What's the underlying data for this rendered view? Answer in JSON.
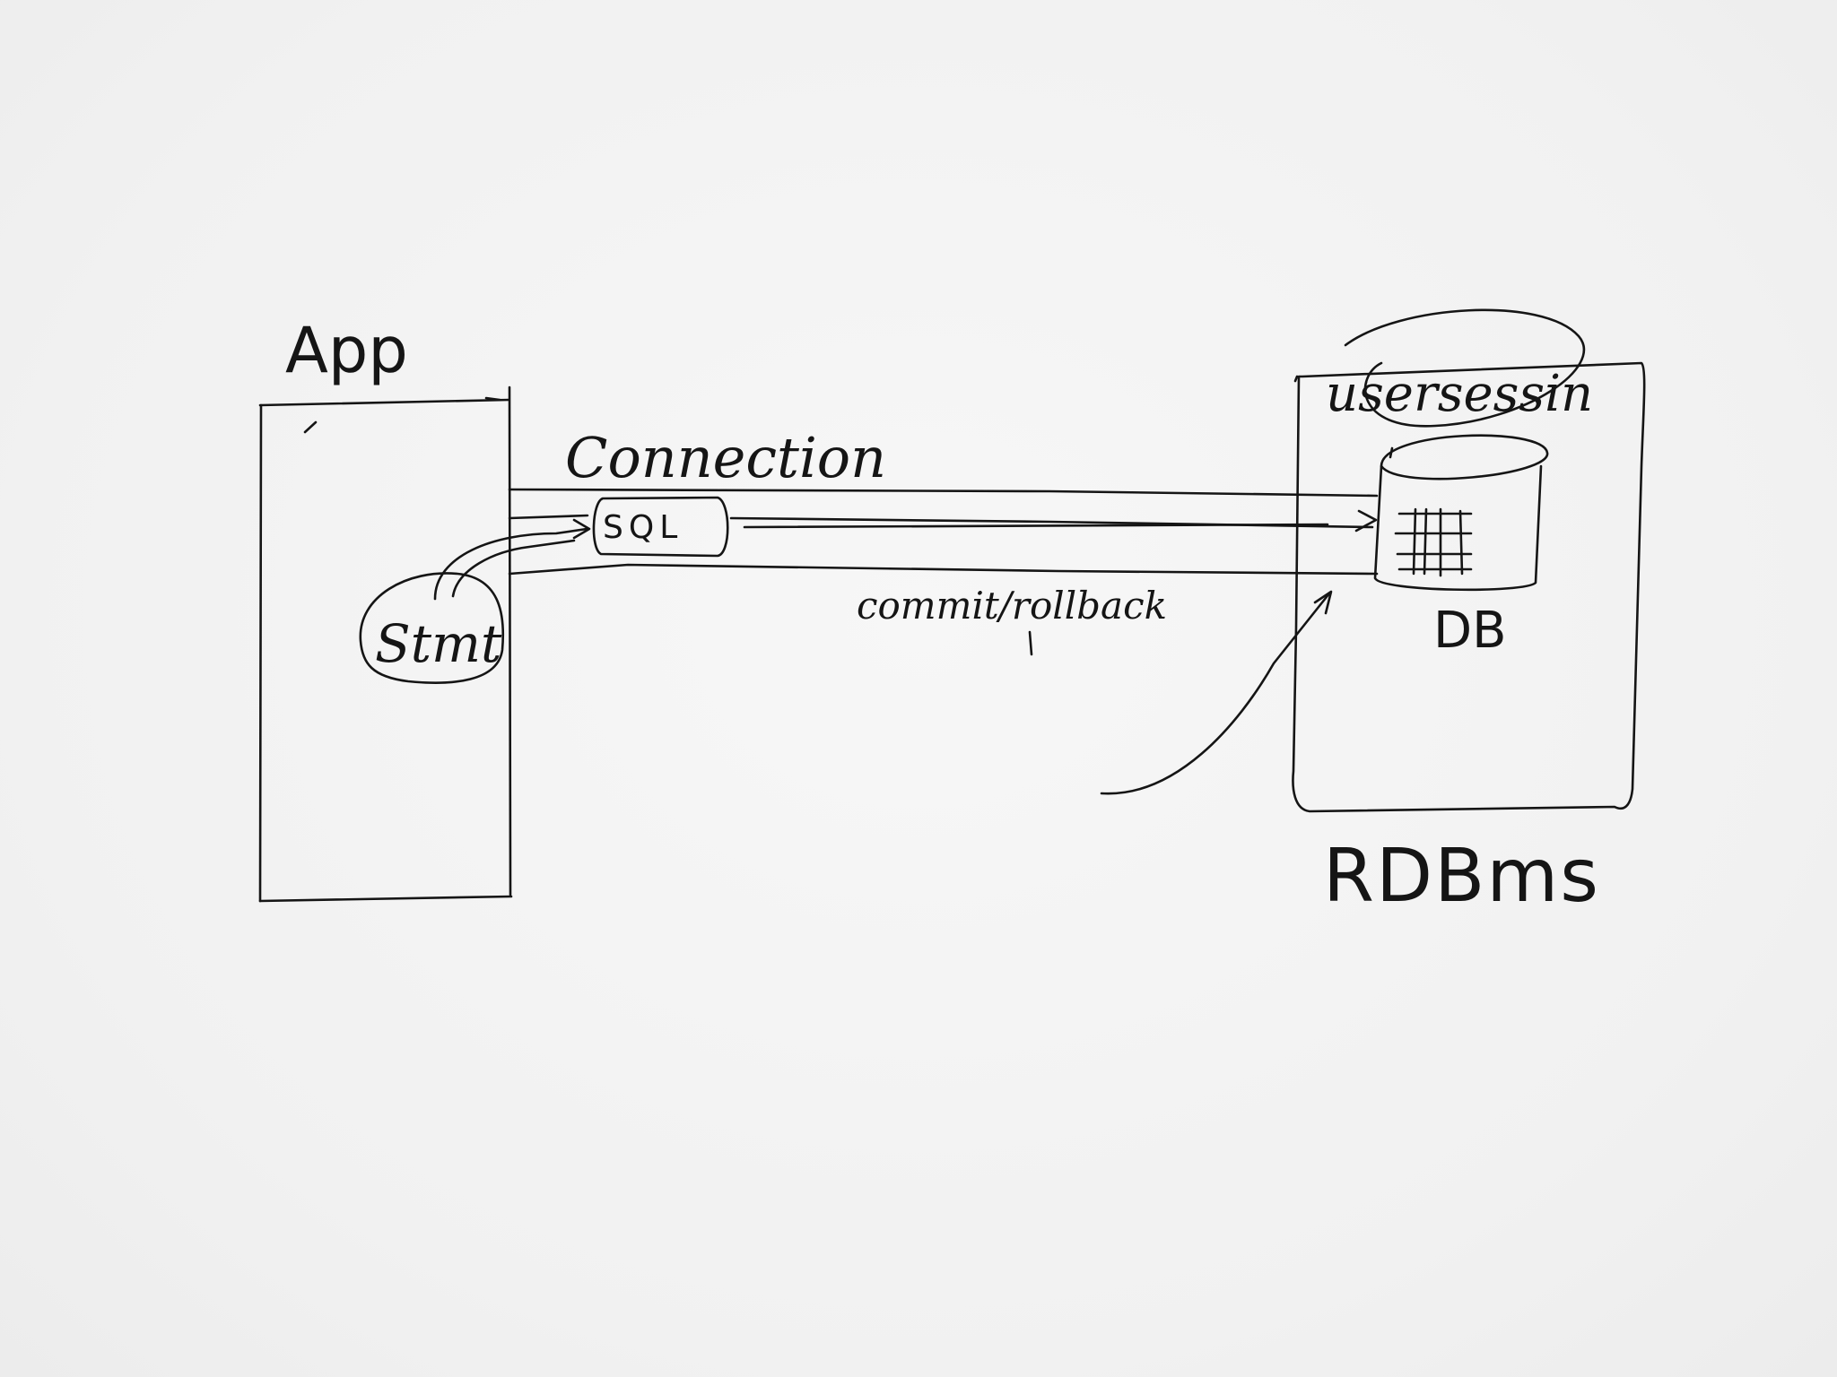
{
  "diagram": {
    "labels": {
      "app": "App",
      "connection": "Connection",
      "sql": "SQL",
      "stmt": "Stmt",
      "commit_rollback": "commit/rollback",
      "user_session": "usersessin",
      "db": "DB",
      "rdbms": "RDBms"
    },
    "colors": {
      "ink": "#151515",
      "paper": "#f3f3f3"
    }
  }
}
